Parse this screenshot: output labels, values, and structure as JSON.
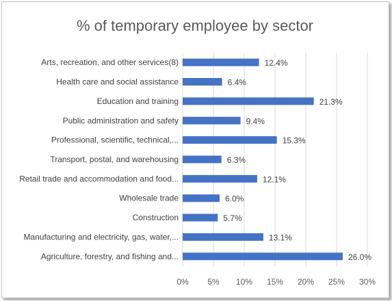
{
  "chart_data": {
    "type": "bar",
    "orientation": "horizontal",
    "title": "% of temporary employee by sector",
    "categories": [
      "Arts, recreation, and other services(8)",
      "Health care and social assistance",
      "Education and training",
      "Public administration and safety",
      "Professional, scientific, technical,...",
      "Transport, postal, and warehousing",
      "Retail trade and accommodation and food...",
      "Wholesale trade",
      "Construction",
      "Manufacturing and electricity, gas, water,...",
      "Agriculture, forestry, and fishing and..."
    ],
    "values": [
      12.4,
      6.4,
      21.3,
      9.4,
      15.3,
      6.3,
      12.1,
      6.0,
      5.7,
      13.1,
      26.0
    ],
    "data_labels": [
      "12.4%",
      "6.4%",
      "21.3%",
      "9.4%",
      "15.3%",
      "6.3%",
      "12.1%",
      "6.0%",
      "5.7%",
      "13.1%",
      "26.0%"
    ],
    "x_ticks": [
      "0%",
      "5%",
      "10%",
      "15%",
      "20%",
      "25%",
      "30%"
    ],
    "xlim": [
      0,
      30
    ],
    "grid": true,
    "legend": "none",
    "bar_color": "#4472c4",
    "grid_color": "#d9d9d9"
  }
}
